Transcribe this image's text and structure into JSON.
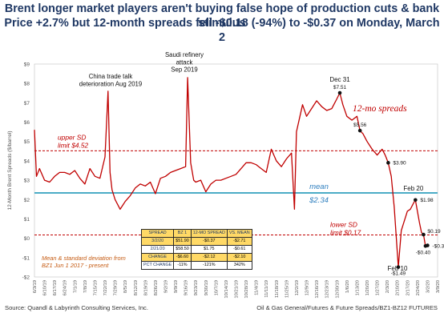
{
  "title_line1": "Brent longer market players aren't buying false hope of production cuts & bank stimulus",
  "title_line2": "Price +2.7% but 12-month spreads fell -$0.18 (-94%) to -$0.37 on Monday, March 2",
  "footer_left": "Source: Quandl & Labyrinth Consulting Services, Inc.",
  "footer_right": "Oil & Gas General/Futures & Future Spreads/BZ1-BZ12 FUTURES",
  "colors": {
    "series": "#c00000",
    "mean_line": "#4bacc6",
    "sd_line": "#c00000",
    "mean_text": "#2f7fbf",
    "table_fill": "#ffd966",
    "title": "#1f3864"
  },
  "annotations": {
    "china": "China trade talk deterioration Aug 2019",
    "saudi": "Saudi refinery attack Sep 2019",
    "dec31": "Dec 31",
    "feb20": "Feb 20",
    "feb10": "Feb 10",
    "series_label": "12-mo spreads",
    "upper_sd": "upper SD limit $4.52",
    "mean": "mean",
    "mean_val": "$2.34",
    "lower_sd": "lower SD limit $0.17",
    "note": "Mean & standard deviation from BZ1 Jun 1 2017 - present"
  },
  "table": {
    "headers": [
      "SPREAD",
      "BZ 1",
      "12-MO SPREAD",
      "VS. MEAN"
    ],
    "rows": [
      [
        "3/2/20",
        "$51.90",
        "-$0.37",
        "-$2.71"
      ],
      [
        "2/21/20",
        "$58.50",
        "$1.75",
        "-$0.61"
      ],
      [
        "CHANGE",
        "-$6.60",
        "-$2.12",
        "-$2.10"
      ],
      [
        "PCT CHANGE",
        "-11%",
        "-121%",
        "342%"
      ]
    ]
  },
  "chart_data": {
    "type": "line",
    "ylabel": "12-Month Brent Spreads ($/barrel)",
    "ylim": [
      -2,
      9
    ],
    "yticks": [
      -2,
      -1,
      0,
      1,
      2,
      3,
      4,
      5,
      6,
      7,
      8,
      9
    ],
    "ytick_labels": [
      "-$2",
      "-$1",
      "$0",
      "$1",
      "$2",
      "$3",
      "$4",
      "$5",
      "$6",
      "$7",
      "$8",
      "$9"
    ],
    "x_tick_labels": [
      "6/3/19",
      "6/10/19",
      "6/17/19",
      "6/24/19",
      "7/1/19",
      "7/8/19",
      "7/15/19",
      "7/22/19",
      "7/29/19",
      "8/5/19",
      "8/12/19",
      "8/19/19",
      "8/26/19",
      "9/2/19",
      "9/9/19",
      "9/16/19",
      "9/23/19",
      "9/30/19",
      "10/7/19",
      "10/14/19",
      "10/21/19",
      "10/28/19",
      "11/4/19",
      "11/11/19",
      "11/18/19",
      "11/25/19",
      "12/2/19",
      "12/9/19",
      "12/16/19",
      "12/23/19",
      "12/30/19",
      "1/6/20",
      "1/13/20",
      "1/20/20",
      "1/27/20",
      "2/3/20",
      "2/10/20",
      "2/17/20",
      "2/24/20",
      "3/2/20",
      "3/9/20"
    ],
    "reference_lines": {
      "upper_sd": 4.52,
      "mean": 2.34,
      "lower_sd": 0.17
    },
    "point_labels": [
      {
        "text": "$7.51",
        "value": 7.51,
        "x_week": 30.3
      },
      {
        "text": "$5.56",
        "value": 5.56,
        "x_week": 32.3
      },
      {
        "text": "$3.90",
        "value": 3.9,
        "x_week": 35.1
      },
      {
        "text": "$1.98",
        "value": 1.98,
        "x_week": 37.8
      },
      {
        "text": "-$1.49",
        "value": -1.49,
        "x_week": 36.1
      },
      {
        "text": "$0.19",
        "value": 0.19,
        "x_week": 38.6
      },
      {
        "text": "-$0.37",
        "value": -0.37,
        "x_week": 39
      },
      {
        "text": "-$0.40",
        "value": -0.4,
        "x_week": 38.8
      }
    ],
    "series": [
      {
        "x_week": [
          0,
          0.2,
          0.5,
          1,
          1.5,
          2,
          2.5,
          3,
          3.5,
          4,
          4.5,
          5,
          5.5,
          6,
          6.5,
          7,
          7.3,
          7.5,
          7.7,
          8,
          8.5,
          9,
          9.5,
          10,
          10.5,
          11,
          11.5,
          12,
          12.5,
          13,
          13.5,
          14,
          14.5,
          15,
          15.2,
          15.5,
          15.8,
          16,
          16.5,
          17,
          17.5,
          18,
          18.5,
          19,
          19.5,
          20,
          20.5,
          21,
          21.5,
          22,
          22.5,
          23,
          23.5,
          24,
          24.5,
          25,
          25.5,
          25.8,
          26,
          26.3,
          26.6,
          27,
          27.5,
          28,
          28.5,
          29,
          29.5,
          30,
          30.3,
          30.6,
          31,
          31.5,
          32,
          32.3,
          32.6,
          33,
          33.5,
          34,
          34.5,
          34.8,
          35.1,
          35.4,
          35.7,
          36.1,
          36.4,
          36.7,
          37,
          37.3,
          37.6,
          37.8,
          38,
          38.2,
          38.4,
          38.6,
          38.8,
          39
        ],
        "values": [
          5.6,
          3.2,
          3.6,
          3,
          2.9,
          3.2,
          3.4,
          3.4,
          3.3,
          3.5,
          3.1,
          2.8,
          3.6,
          3.2,
          3.1,
          4.2,
          7.6,
          3.4,
          2.5,
          2,
          1.5,
          1.9,
          2.2,
          2.6,
          2.8,
          2.7,
          2.9,
          2.3,
          3.1,
          3.2,
          3.4,
          3.5,
          3.6,
          3.7,
          8.3,
          3.9,
          3,
          2.9,
          3,
          2.4,
          2.8,
          3,
          3,
          3.1,
          3.2,
          3.3,
          3.6,
          3.9,
          3.9,
          3.8,
          3.6,
          3.4,
          4.6,
          4,
          3.7,
          4.1,
          4.4,
          1.5,
          5.5,
          6.2,
          6.9,
          6.3,
          6.7,
          7.1,
          6.8,
          6.6,
          6.7,
          7.2,
          7.51,
          6.9,
          6.3,
          6.1,
          6.3,
          5.56,
          5.4,
          5,
          4.6,
          4.3,
          4.6,
          4.3,
          3.9,
          3.2,
          1.6,
          -1.49,
          0.4,
          0.9,
          1.4,
          1.5,
          1.8,
          1.98,
          1.4,
          0.8,
          0.3,
          0.19,
          -0.4,
          -0.37
        ]
      }
    ]
  }
}
